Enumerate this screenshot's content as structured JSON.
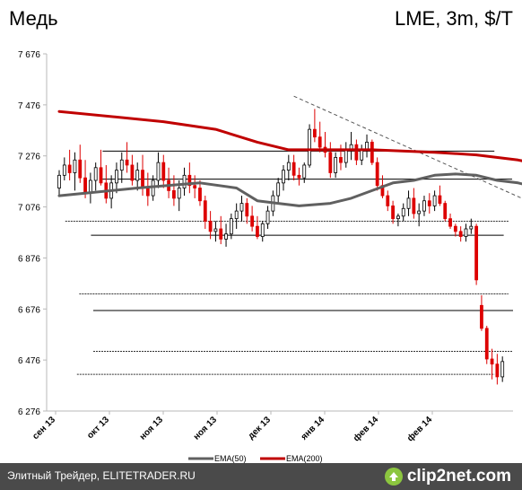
{
  "chart_data": {
    "type": "candlestick",
    "title": "Медь",
    "subtitle": "LME, 3m, $/T",
    "y_ticks": [
      "7 676",
      "7 476",
      "7 276",
      "7 076",
      "6 876",
      "6 676",
      "6 476",
      "6 276"
    ],
    "x_ticks": [
      "сен 13",
      "окт 13",
      "ноя 13",
      "ноя 13",
      "дек 13",
      "янв 14",
      "фев 14",
      "фев 14"
    ],
    "ylim": [
      6276,
      7676
    ],
    "grid": false,
    "legend_position": "bottom",
    "ohlc": [
      [
        7150,
        7220,
        7120,
        7200
      ],
      [
        7200,
        7270,
        7180,
        7240
      ],
      [
        7240,
        7300,
        7180,
        7210
      ],
      [
        7210,
        7290,
        7140,
        7260
      ],
      [
        7260,
        7320,
        7170,
        7190
      ],
      [
        7190,
        7260,
        7110,
        7130
      ],
      [
        7130,
        7210,
        7090,
        7180
      ],
      [
        7180,
        7250,
        7140,
        7230
      ],
      [
        7230,
        7300,
        7160,
        7170
      ],
      [
        7170,
        7240,
        7090,
        7110
      ],
      [
        7110,
        7200,
        7070,
        7170
      ],
      [
        7170,
        7250,
        7130,
        7220
      ],
      [
        7220,
        7290,
        7170,
        7260
      ],
      [
        7260,
        7330,
        7210,
        7240
      ],
      [
        7240,
        7280,
        7160,
        7180
      ],
      [
        7180,
        7250,
        7140,
        7220
      ],
      [
        7220,
        7280,
        7120,
        7150
      ],
      [
        7150,
        7210,
        7080,
        7120
      ],
      [
        7120,
        7200,
        7100,
        7180
      ],
      [
        7180,
        7290,
        7150,
        7250
      ],
      [
        7250,
        7280,
        7150,
        7180
      ],
      [
        7180,
        7230,
        7110,
        7140
      ],
      [
        7140,
        7200,
        7080,
        7110
      ],
      [
        7110,
        7180,
        7060,
        7150
      ],
      [
        7150,
        7230,
        7120,
        7200
      ],
      [
        7200,
        7250,
        7130,
        7160
      ],
      [
        7160,
        7200,
        7110,
        7150
      ],
      [
        7150,
        7180,
        7080,
        7100
      ],
      [
        7100,
        7120,
        6990,
        7020
      ],
      [
        7020,
        7060,
        6950,
        6980
      ],
      [
        6980,
        7020,
        6940,
        6990
      ],
      [
        6990,
        7040,
        6930,
        6950
      ],
      [
        6950,
        7010,
        6920,
        6970
      ],
      [
        6970,
        7050,
        6950,
        7030
      ],
      [
        7030,
        7090,
        6990,
        7060
      ],
      [
        7060,
        7120,
        7020,
        7090
      ],
      [
        7090,
        7110,
        7010,
        7040
      ],
      [
        7040,
        7080,
        6980,
        7000
      ],
      [
        7000,
        7040,
        6950,
        6960
      ],
      [
        6960,
        7020,
        6940,
        7010
      ],
      [
        7010,
        7080,
        6990,
        7060
      ],
      [
        7060,
        7140,
        7040,
        7120
      ],
      [
        7120,
        7190,
        7090,
        7170
      ],
      [
        7170,
        7240,
        7140,
        7220
      ],
      [
        7220,
        7280,
        7180,
        7250
      ],
      [
        7250,
        7280,
        7180,
        7200
      ],
      [
        7200,
        7230,
        7160,
        7190
      ],
      [
        7190,
        7250,
        7170,
        7240
      ],
      [
        7240,
        7400,
        7230,
        7380
      ],
      [
        7380,
        7460,
        7330,
        7350
      ],
      [
        7350,
        7410,
        7290,
        7310
      ],
      [
        7310,
        7370,
        7270,
        7290
      ],
      [
        7290,
        7330,
        7190,
        7210
      ],
      [
        7210,
        7290,
        7190,
        7270
      ],
      [
        7270,
        7320,
        7220,
        7250
      ],
      [
        7250,
        7330,
        7230,
        7300
      ],
      [
        7300,
        7370,
        7260,
        7320
      ],
      [
        7320,
        7340,
        7240,
        7260
      ],
      [
        7260,
        7320,
        7240,
        7300
      ],
      [
        7300,
        7360,
        7270,
        7330
      ],
      [
        7330,
        7340,
        7240,
        7250
      ],
      [
        7250,
        7270,
        7140,
        7160
      ],
      [
        7160,
        7200,
        7110,
        7120
      ],
      [
        7120,
        7140,
        7060,
        7080
      ],
      [
        7080,
        7100,
        7010,
        7030
      ],
      [
        7030,
        7050,
        7000,
        7040
      ],
      [
        7040,
        7090,
        7020,
        7070
      ],
      [
        7070,
        7140,
        7040,
        7110
      ],
      [
        7110,
        7150,
        7030,
        7050
      ],
      [
        7050,
        7090,
        7000,
        7060
      ],
      [
        7060,
        7120,
        7040,
        7100
      ],
      [
        7100,
        7130,
        7050,
        7080
      ],
      [
        7080,
        7140,
        7060,
        7120
      ],
      [
        7120,
        7160,
        7080,
        7090
      ],
      [
        7090,
        7100,
        7020,
        7030
      ],
      [
        7030,
        7050,
        6990,
        7000
      ],
      [
        7000,
        7010,
        6960,
        6980
      ],
      [
        6980,
        7000,
        6940,
        6960
      ],
      [
        6960,
        7010,
        6940,
        6990
      ],
      [
        6990,
        7030,
        6970,
        7000
      ],
      [
        7000,
        7010,
        6770,
        6790
      ],
      [
        6690,
        6730,
        6590,
        6600
      ],
      [
        6600,
        6610,
        6460,
        6480
      ],
      [
        6480,
        6520,
        6400,
        6460
      ],
      [
        6460,
        6500,
        6380,
        6410
      ],
      [
        6410,
        6490,
        6390,
        6470
      ]
    ],
    "ema50": [
      [
        0,
        7120
      ],
      [
        15,
        7150
      ],
      [
        27,
        7170
      ],
      [
        34,
        7150
      ],
      [
        38,
        7100
      ],
      [
        42,
        7090
      ],
      [
        46,
        7080
      ],
      [
        52,
        7090
      ],
      [
        56,
        7110
      ],
      [
        60,
        7140
      ],
      [
        64,
        7170
      ],
      [
        68,
        7180
      ],
      [
        72,
        7200
      ],
      [
        76,
        7205
      ],
      [
        80,
        7200
      ],
      [
        84,
        7180
      ],
      [
        88,
        7170
      ],
      [
        92,
        7150
      ],
      [
        96,
        7100
      ],
      [
        100,
        7020
      ],
      [
        102,
        6980
      ]
    ],
    "ema200": [
      [
        0,
        7450
      ],
      [
        20,
        7410
      ],
      [
        30,
        7380
      ],
      [
        38,
        7330
      ],
      [
        44,
        7300
      ],
      [
        50,
        7300
      ],
      [
        60,
        7300
      ],
      [
        72,
        7290
      ],
      [
        80,
        7280
      ],
      [
        88,
        7260
      ],
      [
        95,
        7230
      ],
      [
        100,
        7200
      ]
    ],
    "levels": [
      {
        "y": 7295,
        "x1": 0.12,
        "x2": 0.96,
        "style": "solid"
      },
      {
        "y": 7185,
        "x1": 0.12,
        "x2": 0.998,
        "style": "solid"
      },
      {
        "y": 7020,
        "x1": 0.04,
        "x2": 0.99,
        "style": "dotted"
      },
      {
        "y": 6965,
        "x1": 0.095,
        "x2": 0.98,
        "style": "solid"
      },
      {
        "y": 6735,
        "x1": 0.07,
        "x2": 0.99,
        "style": "dotted"
      },
      {
        "y": 6670,
        "x1": 0.1,
        "x2": 1.0,
        "style": "solid"
      },
      {
        "y": 6510,
        "x1": 0.1,
        "x2": 1.0,
        "style": "dotted"
      },
      {
        "y": 6420,
        "x1": 0.065,
        "x2": 0.96,
        "style": "dotted"
      }
    ],
    "trendline": {
      "style": "dashed",
      "from": [
        45,
        7510
      ],
      "to": [
        104,
        6970
      ]
    },
    "legend": [
      {
        "label": "EMA(50)",
        "color": "#606060"
      },
      {
        "label": "EMA(200)",
        "color": "#c00000"
      }
    ],
    "colors": {
      "up": "#000000",
      "down": "#dd0000",
      "ema50": "#606060",
      "ema200": "#c00000"
    }
  },
  "footer": {
    "caption": "Элитный Трейдер, ELITETRADER.RU",
    "logo": "clip2net.com",
    "logo_icon": "clip2net-icon"
  }
}
